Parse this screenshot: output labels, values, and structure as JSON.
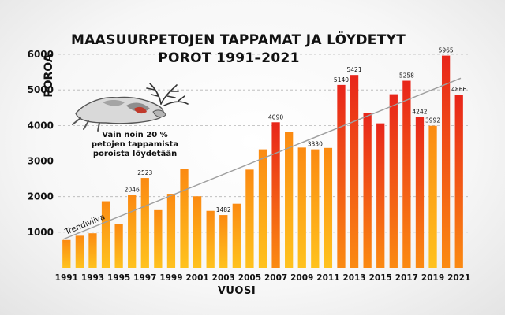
{
  "page": {
    "title_line1": "MAASUURPETOJEN TAPPAMAT JA LÖYDETYT",
    "title_line2": "POROT 1991–2021",
    "note_line1": "Vain noin 20 %",
    "note_line2": "petojen tappamista",
    "note_line3": "poroista löydetään",
    "reindeer_icon": "dead-reindeer-illustration"
  },
  "colors": {
    "bar_low": "#ffc21e",
    "bar_mid": "#fb8a12",
    "bar_high": "#e8251a",
    "trend": "#9e9e9e",
    "grid": "#b5b5b5",
    "text": "#111111"
  },
  "chart_data": {
    "type": "bar",
    "title": "MAASUURPETOJEN TAPPAMAT JA LÖYDETYT POROT 1991–2021",
    "xlabel": "VUOSI",
    "ylabel": "POROA",
    "ylim": [
      0,
      6200
    ],
    "yticks": [
      1000,
      2000,
      3000,
      4000,
      5000,
      6000
    ],
    "xtick_labels": [
      "1991",
      "1993",
      "1995",
      "1997",
      "1999",
      "2001",
      "2003",
      "2005",
      "2007",
      "2009",
      "2011",
      "2013",
      "2015",
      "2017",
      "2019",
      "2021"
    ],
    "categories": [
      "1991",
      "1992",
      "1993",
      "1994",
      "1995",
      "1996",
      "1997",
      "1998",
      "1999",
      "2000",
      "2001",
      "2002",
      "2003",
      "2004",
      "2005",
      "2006",
      "2007",
      "2008",
      "2009",
      "2010",
      "2011",
      "2012",
      "2013",
      "2014",
      "2015",
      "2016",
      "2017",
      "2018",
      "2019",
      "2020",
      "2021"
    ],
    "values": [
      780,
      900,
      970,
      1870,
      1220,
      2046,
      2523,
      1620,
      2080,
      2780,
      2010,
      1600,
      1482,
      1800,
      2760,
      3330,
      4090,
      3830,
      3380,
      3330,
      3370,
      5140,
      5421,
      4360,
      4060,
      4880,
      5258,
      4242,
      3992,
      5965,
      4866
    ],
    "data_labels": [
      {
        "category": "1996",
        "text": "2046"
      },
      {
        "category": "1997",
        "text": "2523"
      },
      {
        "category": "2003",
        "text": "1482"
      },
      {
        "category": "2007",
        "text": "4090"
      },
      {
        "category": "2010",
        "text": "3330"
      },
      {
        "category": "2012",
        "text": "5140"
      },
      {
        "category": "2013",
        "text": "5421"
      },
      {
        "category": "2018",
        "text": "4242"
      },
      {
        "category": "2019",
        "text": "3992"
      },
      {
        "category": "2017",
        "text": "5258"
      },
      {
        "category": "2020",
        "text": "5965"
      },
      {
        "category": "2021",
        "text": "4866"
      }
    ],
    "trend": {
      "label": "Trendiviiva",
      "start_value": 800,
      "end_value": 5330
    },
    "grid": "dashed horizontal"
  }
}
